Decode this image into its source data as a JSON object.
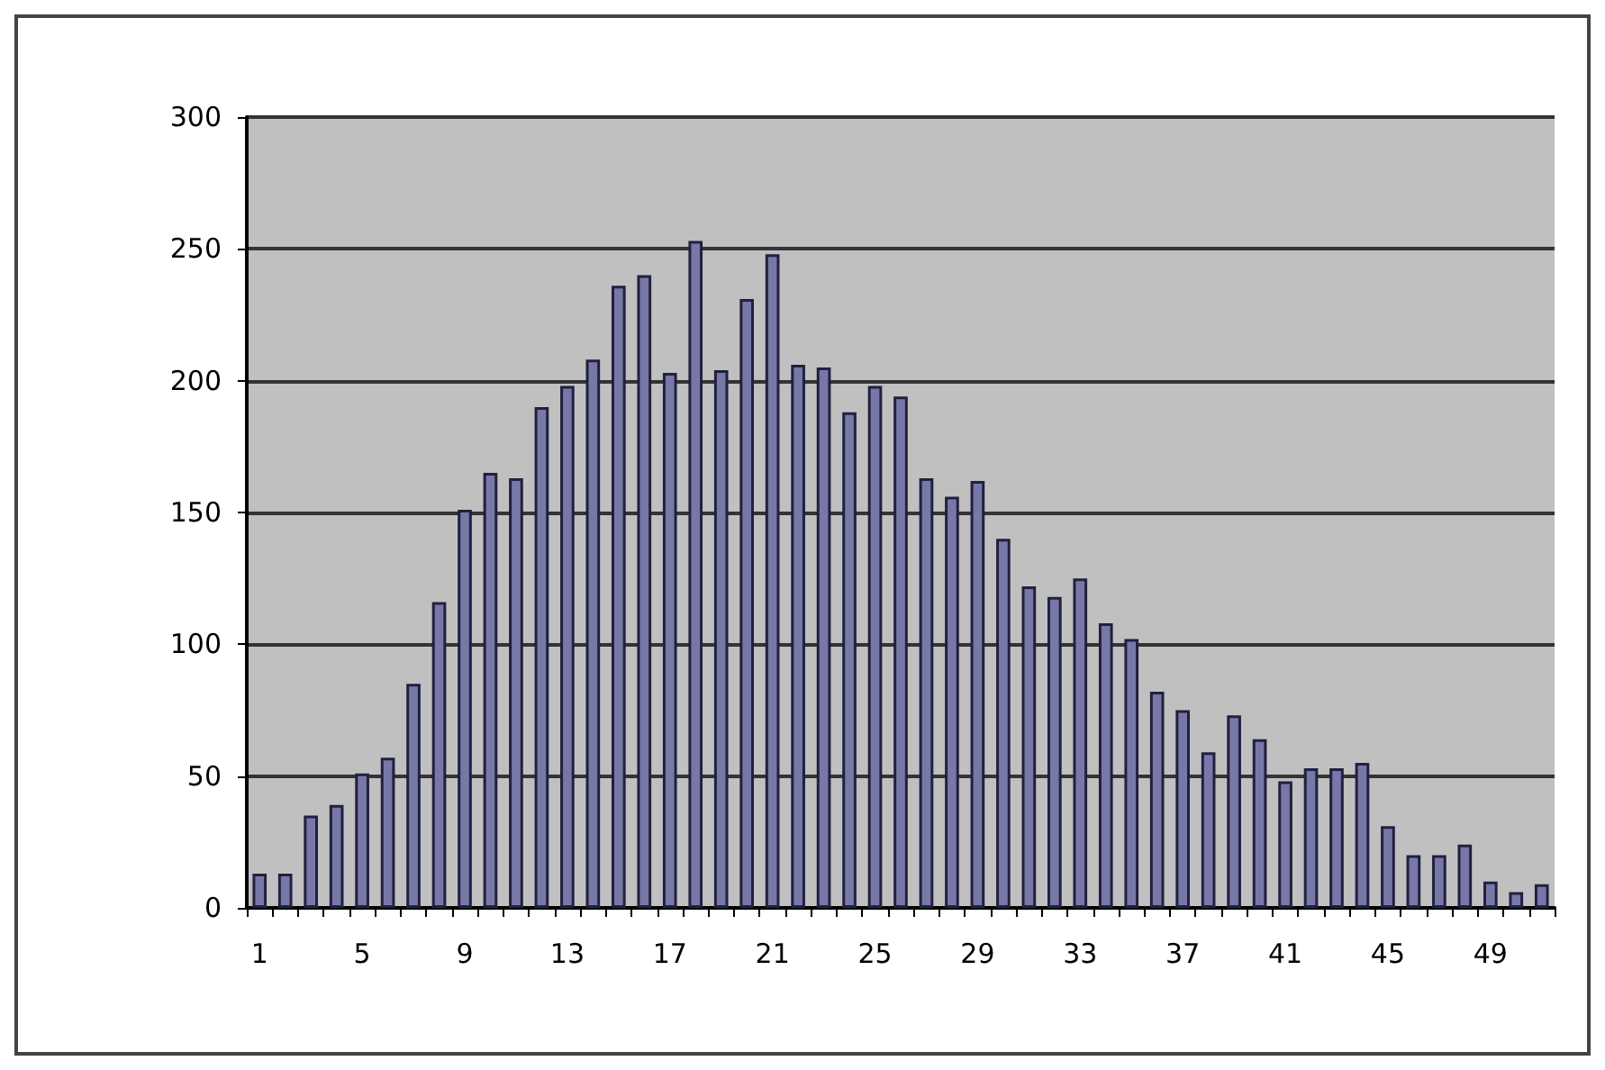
{
  "chart_data": {
    "type": "bar",
    "categories": [
      "1",
      null,
      null,
      null,
      "5",
      null,
      null,
      null,
      "9",
      null,
      null,
      null,
      "13",
      null,
      null,
      null,
      "17",
      null,
      null,
      null,
      "21",
      null,
      null,
      null,
      "25",
      null,
      null,
      null,
      "29",
      null,
      null,
      null,
      "33",
      null,
      null,
      null,
      "37",
      null,
      null,
      null,
      "41",
      null,
      null,
      null,
      "45",
      null,
      null,
      null,
      "49",
      null,
      null
    ],
    "values": [
      13,
      13,
      35,
      39,
      51,
      57,
      85,
      116,
      151,
      165,
      163,
      190,
      198,
      208,
      236,
      240,
      203,
      253,
      204,
      231,
      248,
      206,
      205,
      188,
      198,
      194,
      163,
      156,
      162,
      140,
      122,
      118,
      125,
      108,
      102,
      82,
      75,
      59,
      73,
      64,
      48,
      53,
      53,
      55,
      31,
      20,
      20,
      24,
      10,
      6,
      9
    ],
    "color": "#7878a8",
    "ylim": [
      0,
      300
    ],
    "yticks": [
      0,
      50,
      100,
      150,
      200,
      250,
      300
    ],
    "grid": "y"
  }
}
